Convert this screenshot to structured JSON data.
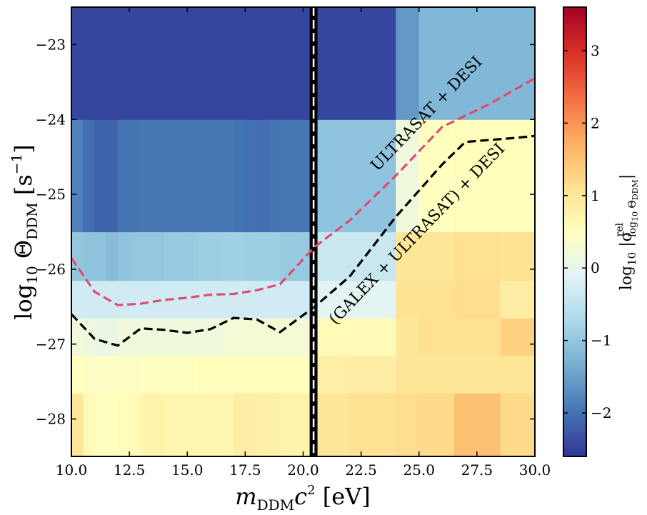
{
  "chart_data": {
    "type": "heatmap",
    "title": "",
    "xlabel": "m_DDM c^2 [eV]",
    "ylabel": "log10 Θ_DDM [s^-1]",
    "colorbar_label": "log10 |σ^rel_{log10 Θ_DDM}|",
    "xlim": [
      10.0,
      30.0
    ],
    "ylim": [
      -28.5,
      -22.5
    ],
    "clim": [
      -2.6,
      3.6
    ],
    "colormap": "RdYlBu_r",
    "xticks": [
      10.0,
      12.5,
      15.0,
      17.5,
      20.0,
      22.5,
      25.0,
      27.5,
      30.0
    ],
    "xtick_labels": [
      "10.0",
      "12.5",
      "15.0",
      "17.5",
      "20.0",
      "22.5",
      "25.0",
      "27.5",
      "30.0"
    ],
    "yticks": [
      -28,
      -27,
      -26,
      -25,
      -24,
      -23
    ],
    "ytick_labels": [
      "−28",
      "−27",
      "−26",
      "−25",
      "−24",
      "−23"
    ],
    "cbar_ticks": [
      -2,
      -1,
      0,
      1,
      2,
      3
    ],
    "cbar_tick_labels": [
      "−2",
      "−1",
      "0",
      "1",
      "2",
      "3"
    ],
    "x_edges": [
      10.0,
      10.5,
      11.0,
      11.5,
      12.0,
      12.5,
      13.0,
      13.5,
      14.0,
      14.5,
      15.0,
      15.5,
      16.0,
      16.5,
      17.0,
      17.5,
      18.0,
      18.5,
      19.0,
      19.5,
      20.3,
      20.5,
      22.0,
      24.0,
      25.0,
      26.5,
      28.5,
      30.0
    ],
    "y_edges": [
      -28.5,
      -27.65,
      -27.15,
      -26.65,
      -26.15,
      -25.5,
      -24.0,
      -22.5
    ],
    "z": [
      [
        1.0,
        0.6,
        0.5,
        0.5,
        0.55,
        0.6,
        0.75,
        0.75,
        0.7,
        0.7,
        0.7,
        0.7,
        0.7,
        0.7,
        0.85,
        0.85,
        0.8,
        0.8,
        0.75,
        0.75,
        0.9,
        1.0,
        1.1,
        1.15,
        1.2,
        1.5,
        1.2
      ],
      [
        0.5,
        0.45,
        0.45,
        0.45,
        0.45,
        0.45,
        0.5,
        0.5,
        0.5,
        0.5,
        0.5,
        0.55,
        0.55,
        0.55,
        0.55,
        0.55,
        0.55,
        0.55,
        0.55,
        0.55,
        0.8,
        0.8,
        0.85,
        1.0,
        1.0,
        1.0,
        1.0
      ],
      [
        0.2,
        0.15,
        0.1,
        0.1,
        0.2,
        0.2,
        0.2,
        0.2,
        0.2,
        0.2,
        0.2,
        0.2,
        0.2,
        0.25,
        0.25,
        0.25,
        0.25,
        0.25,
        0.25,
        0.25,
        0.6,
        0.6,
        0.6,
        1.0,
        1.1,
        1.1,
        1.3
      ],
      [
        -0.3,
        -0.3,
        -0.3,
        -0.3,
        -0.3,
        -0.3,
        -0.3,
        -0.3,
        -0.3,
        -0.3,
        -0.3,
        -0.3,
        -0.3,
        -0.3,
        -0.3,
        -0.3,
        -0.3,
        -0.3,
        -0.3,
        -0.3,
        -0.05,
        -0.05,
        -0.05,
        1.05,
        1.1,
        1.15,
        0.85
      ],
      [
        -1.0,
        -1.05,
        -1.05,
        -1.15,
        -1.05,
        -1.0,
        -1.0,
        -1.0,
        -0.95,
        -0.95,
        -0.95,
        -0.9,
        -0.9,
        -0.85,
        -0.85,
        -0.9,
        -0.9,
        -0.9,
        -0.95,
        -0.95,
        -0.4,
        -0.4,
        -0.4,
        1.0,
        1.0,
        1.1,
        1.05
      ],
      [
        -1.85,
        -2.05,
        -2.15,
        -2.15,
        -2.0,
        -2.0,
        -1.95,
        -1.95,
        -1.95,
        -1.95,
        -1.95,
        -1.95,
        -1.95,
        -1.95,
        -2.0,
        -2.05,
        -2.05,
        -2.0,
        -1.95,
        -1.95,
        -1.05,
        -1.05,
        -1.05,
        0.2,
        0.5,
        0.55,
        0.55
      ],
      [
        -2.45,
        -2.45,
        -2.45,
        -2.45,
        -2.45,
        -2.45,
        -2.45,
        -2.45,
        -2.45,
        -2.45,
        -2.45,
        -2.45,
        -2.45,
        -2.45,
        -2.45,
        -2.45,
        -2.45,
        -2.45,
        -2.45,
        -2.45,
        -2.45,
        -2.45,
        -2.45,
        -1.6,
        -1.2,
        -1.2,
        -1.2
      ]
    ],
    "vlines": [
      {
        "name": "vline-solid",
        "x": 20.45,
        "style": "solid",
        "color": "#000000"
      },
      {
        "name": "vline-dashed",
        "x": 20.45,
        "style": "dashed",
        "color": "#ffffff"
      }
    ],
    "series": [
      {
        "name": "ULTRASAT + DESI",
        "color": "#e34a6f",
        "style": "dashed",
        "x": [
          10.0,
          11.0,
          12.0,
          13.0,
          14.0,
          15.0,
          16.0,
          17.0,
          18.0,
          19.0,
          20.5,
          22.0,
          24.0,
          26.0,
          28.0,
          30.0
        ],
        "y": [
          -25.85,
          -26.3,
          -26.48,
          -26.46,
          -26.41,
          -26.38,
          -26.34,
          -26.33,
          -26.28,
          -26.2,
          -25.7,
          -25.35,
          -24.75,
          -24.1,
          -23.8,
          -23.45
        ]
      },
      {
        "name": "(GALEX + ULTRASAT) + DESI",
        "color": "#000000",
        "style": "dashed",
        "x": [
          10.0,
          11.0,
          12.0,
          13.0,
          14.0,
          15.0,
          16.0,
          17.0,
          18.0,
          19.0,
          20.5,
          22.0,
          24.0,
          26.0,
          27.0,
          29.0,
          30.0
        ],
        "y": [
          -26.6,
          -26.93,
          -27.02,
          -26.79,
          -26.81,
          -26.85,
          -26.8,
          -26.65,
          -26.67,
          -26.84,
          -26.5,
          -26.1,
          -25.3,
          -24.6,
          -24.3,
          -24.25,
          -24.22
        ]
      }
    ],
    "annotations": [
      {
        "name": "annotation-ultrasat-desi",
        "text": "ULTRASAT + DESI",
        "x": 23.2,
        "y": -24.7,
        "rotation": -46
      },
      {
        "name": "annotation-galex-ultrasat-desi",
        "text": "(GALEX + ULTRASAT) + DESI",
        "x": 21.4,
        "y": -26.75,
        "rotation": -46
      }
    ]
  }
}
